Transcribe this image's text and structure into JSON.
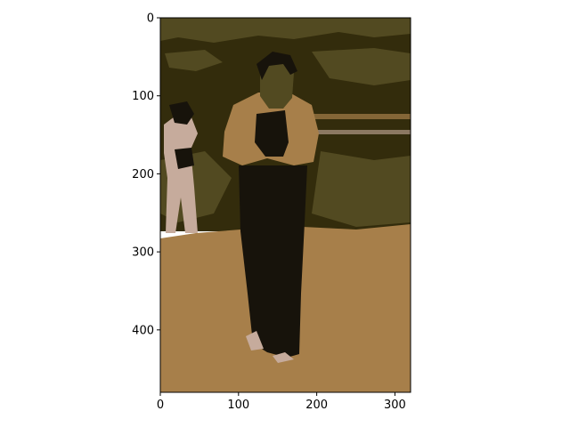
{
  "chart_data": {
    "type": "image",
    "title": "",
    "xlabel": "",
    "ylabel": "",
    "image_size": [
      320,
      480
    ],
    "xlim": [
      0,
      320
    ],
    "ylim": [
      480,
      0
    ],
    "xticks": [
      0,
      100,
      200,
      300
    ],
    "yticks": [
      0,
      100,
      200,
      300,
      400
    ],
    "palette": {
      "dark_olive": "#332c0c",
      "olive": "#524a21",
      "near_black": "#17130b",
      "tan": "#a77f4a",
      "pale": "#c6ab9c",
      "white": "#ffffff"
    },
    "scene": "posterized photo of a person in dark skirt and light jacket standing on dirt ground, another person at left edge"
  }
}
